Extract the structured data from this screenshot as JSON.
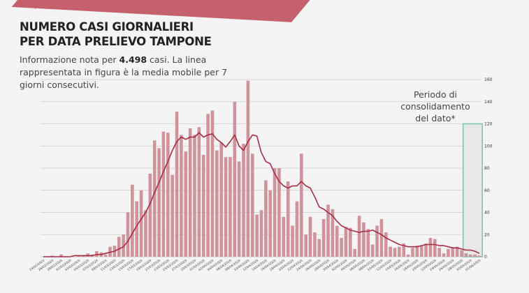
{
  "header": {
    "title_line1": "NUMERO CASI GIORNALIERI",
    "title_line2": "PER DATA PRELIEVO TAMPONE",
    "subtitle_pre": "Informazione nota per ",
    "subtitle_bold": "4.498",
    "subtitle_post": "  casi. La linea rappresentata in figura è la media mobile per 7 giorni consecutivi."
  },
  "annotation": {
    "text_line1": "Periodo di",
    "text_line2": "consolidamento",
    "text_line3": "del dato*"
  },
  "colors": {
    "bar": "#cf939b",
    "line": "#a82c45",
    "consolidation_border": "#7fc4b6",
    "consolidation_fill": "#e8e8e8",
    "ribbon": "#c5606d",
    "background": "#f4f4f4",
    "grid": "#cccccc"
  },
  "chart_data": {
    "type": "bar",
    "title": "NUMERO CASI GIORNALIERI PER DATA PRELIEVO TAMPONE",
    "subtitle": "Informazione nota per 4.498 casi. La linea rappresentata in figura è la media mobile per 7 giorni consecutivi.",
    "xlabel": "",
    "ylabel": "",
    "ylim": [
      0,
      160
    ],
    "yticks": [
      0,
      20,
      40,
      60,
      80,
      100,
      120,
      140,
      160
    ],
    "y_axis_position": "right",
    "grid": true,
    "x_label_every": 2,
    "start_date": "24/02/2020",
    "end_date": "01/06/2020",
    "consolidation_period": {
      "from": "29/05/2020",
      "to": "01/06/2020",
      "ymax": 120,
      "label": "Periodo di consolidamento del dato*"
    },
    "categories": [
      "24/02/2020",
      "25/02/2020",
      "26/02/2020",
      "27/02/2020",
      "28/02/2020",
      "29/02/2020",
      "01/03/2020",
      "02/03/2020",
      "03/03/2020",
      "04/03/2020",
      "05/03/2020",
      "06/03/2020",
      "07/03/2020",
      "08/03/2020",
      "09/03/2020",
      "10/03/2020",
      "11/03/2020",
      "12/03/2020",
      "13/03/2020",
      "14/03/2020",
      "15/03/2020",
      "16/03/2020",
      "17/03/2020",
      "18/03/2020",
      "19/03/2020",
      "20/03/2020",
      "21/03/2020",
      "22/03/2020",
      "23/03/2020",
      "24/03/2020",
      "25/03/2020",
      "26/03/2020",
      "27/03/2020",
      "28/03/2020",
      "29/03/2020",
      "30/03/2020",
      "31/03/2020",
      "01/04/2020",
      "02/04/2020",
      "03/04/2020",
      "04/04/2020",
      "05/04/2020",
      "06/04/2020",
      "07/04/2020",
      "08/04/2020",
      "09/04/2020",
      "10/04/2020",
      "11/04/2020",
      "12/04/2020",
      "13/04/2020",
      "14/04/2020",
      "15/04/2020",
      "16/04/2020",
      "17/04/2020",
      "18/04/2020",
      "19/04/2020",
      "20/04/2020",
      "21/04/2020",
      "22/04/2020",
      "23/04/2020",
      "24/04/2020",
      "25/04/2020",
      "26/04/2020",
      "27/04/2020",
      "28/04/2020",
      "29/04/2020",
      "30/04/2020",
      "01/05/2020",
      "02/05/2020",
      "03/05/2020",
      "04/05/2020",
      "05/05/2020",
      "06/05/2020",
      "07/05/2020",
      "08/05/2020",
      "09/05/2020",
      "10/05/2020",
      "11/05/2020",
      "12/05/2020",
      "13/05/2020",
      "14/05/2020",
      "15/05/2020",
      "16/05/2020",
      "17/05/2020",
      "18/05/2020",
      "19/05/2020",
      "20/05/2020",
      "21/05/2020",
      "22/05/2020",
      "23/05/2020",
      "24/05/2020",
      "25/05/2020",
      "26/05/2020",
      "27/05/2020",
      "28/05/2020",
      "29/05/2020",
      "30/05/2020",
      "31/05/2020",
      "01/06/2020"
    ],
    "series": [
      {
        "name": "Casi giornalieri",
        "type": "bar",
        "values": [
          0,
          0,
          1,
          0,
          2,
          0,
          0,
          0,
          1,
          1,
          3,
          2,
          5,
          4,
          2,
          9,
          10,
          18,
          20,
          40,
          65,
          50,
          60,
          42,
          75,
          105,
          98,
          113,
          112,
          74,
          131,
          110,
          95,
          116,
          110,
          117,
          92,
          129,
          132,
          96,
          103,
          90,
          90,
          140,
          86,
          102,
          159,
          93,
          38,
          42,
          69,
          60,
          80,
          80,
          36,
          68,
          28,
          50,
          93,
          20,
          36,
          22,
          16,
          34,
          47,
          43,
          28,
          17,
          27,
          26,
          7,
          37,
          31,
          25,
          11,
          28,
          34,
          22,
          9,
          8,
          9,
          12,
          2,
          8,
          10,
          10,
          12,
          17,
          16,
          8,
          3,
          7,
          8,
          9,
          6,
          3,
          2,
          2,
          1
        ]
      },
      {
        "name": "Media mobile 7 giorni",
        "type": "line",
        "values": [
          0,
          0,
          0,
          0,
          0,
          0,
          0,
          1,
          1,
          1,
          1,
          1,
          2,
          2,
          3,
          4,
          5,
          7,
          9,
          14,
          21,
          28,
          34,
          40,
          48,
          58,
          67,
          77,
          86,
          96,
          104,
          108,
          106,
          108,
          108,
          112,
          108,
          110,
          111,
          106,
          103,
          99,
          104,
          110,
          100,
          96,
          104,
          110,
          109,
          94,
          86,
          84,
          75,
          68,
          64,
          62,
          64,
          64,
          68,
          64,
          62,
          54,
          45,
          43,
          40,
          37,
          32,
          28,
          26,
          24,
          23,
          22,
          23,
          23,
          24,
          22,
          20,
          17,
          15,
          13,
          11,
          10,
          9,
          9,
          9,
          10,
          11,
          11,
          11,
          10,
          10,
          9,
          8,
          8,
          7,
          6,
          6,
          5,
          3
        ]
      }
    ]
  }
}
